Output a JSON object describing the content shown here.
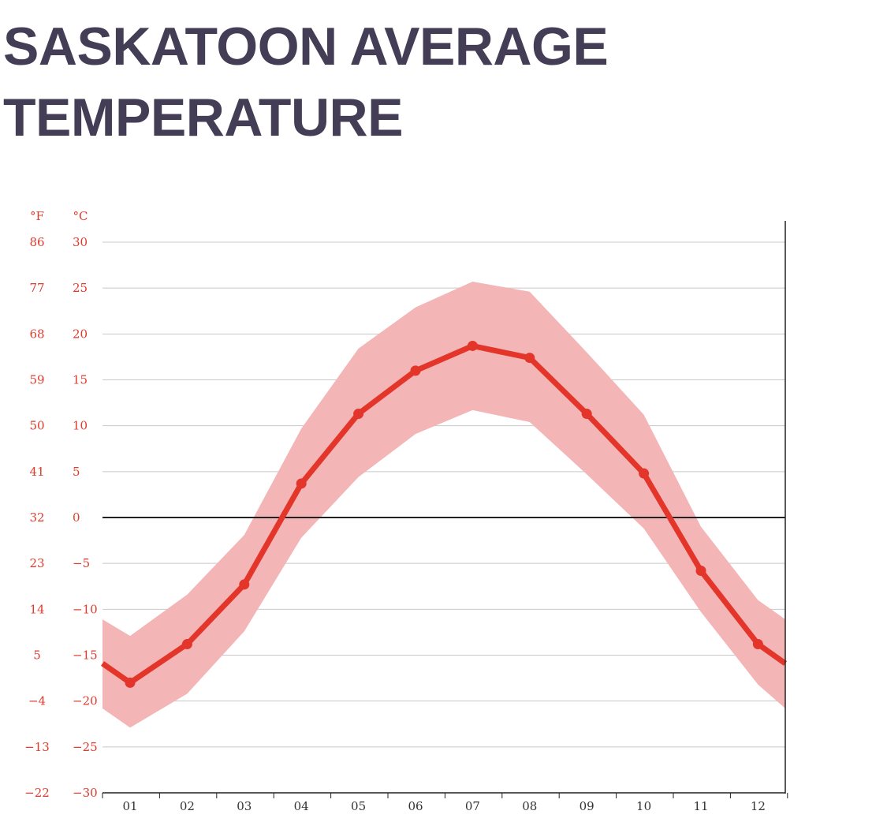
{
  "title_lines": [
    "SASKATOON AVERAGE",
    "TEMPERATURE"
  ],
  "chart_data": {
    "type": "line",
    "title": "SASKATOON AVERAGE TEMPERATURE",
    "categories": [
      "01",
      "02",
      "03",
      "04",
      "05",
      "06",
      "07",
      "08",
      "09",
      "10",
      "11",
      "12"
    ],
    "x_edge_start": -15.9,
    "x_edge_end": -15.9,
    "series": [
      {
        "values": [
          -18.0,
          -13.8,
          -7.3,
          3.7,
          11.3,
          16.0,
          18.7,
          17.4,
          11.3,
          4.8,
          -5.8,
          -13.8
        ]
      }
    ],
    "range_band": {
      "upper": [
        -12.9,
        -8.4,
        -1.9,
        9.7,
        18.4,
        22.9,
        25.7,
        24.6,
        18.0,
        11.2,
        -1.0,
        -9.0
      ],
      "lower": [
        -22.9,
        -19.2,
        -12.4,
        -2.2,
        4.4,
        9.1,
        11.7,
        10.4,
        4.7,
        -1.2,
        -10.3,
        -18.2
      ],
      "upper_edge": [
        -11.1,
        -11.1
      ],
      "lower_edge": [
        -20.8,
        -20.8
      ]
    },
    "y_celsius_ticks": [
      "30",
      "25",
      "20",
      "15",
      "10",
      "5",
      "0",
      "−5",
      "−10",
      "−15",
      "−20",
      "−25",
      "−30"
    ],
    "y_fahrenheit_ticks": [
      "86",
      "77",
      "68",
      "59",
      "50",
      "41",
      "32",
      "23",
      "14",
      "5",
      "−4",
      "−13",
      "−22"
    ],
    "y_unit_labels": {
      "fahrenheit": "°F",
      "celsius": "°C"
    },
    "ylim": [
      -30,
      30
    ],
    "grid": true,
    "colors": {
      "line": "#e3352a",
      "band": "#f3b5b5",
      "grid": "#c8c8c8",
      "zero": "#222222",
      "axis_text": "#e03a2c",
      "title": "#433e55"
    }
  }
}
